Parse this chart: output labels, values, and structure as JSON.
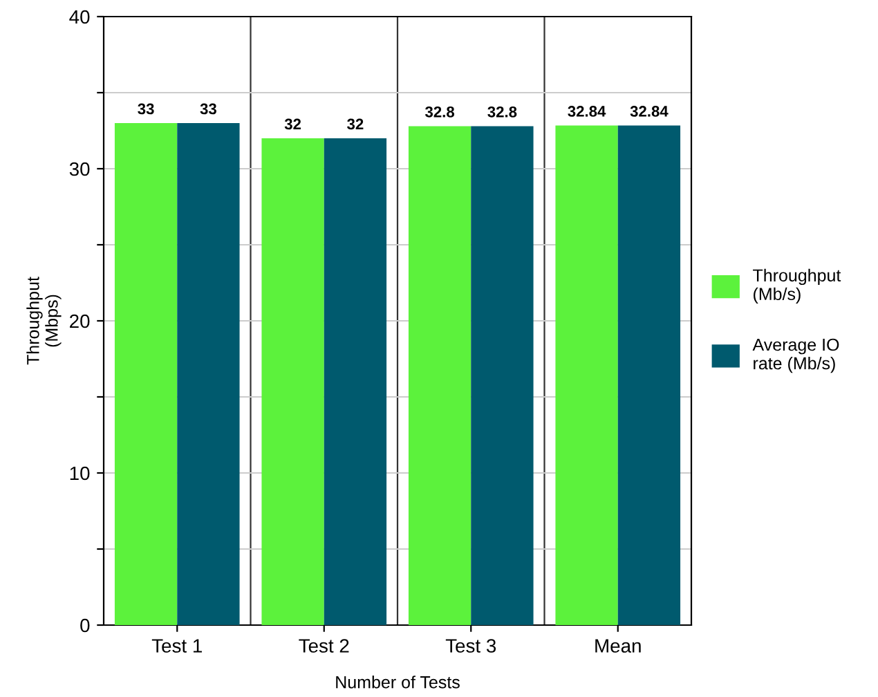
{
  "chart_data": {
    "type": "bar",
    "xlabel": "Number of Tests",
    "ylabel": "Throughput\n(Mbps)",
    "categories": [
      "Test 1",
      "Test 2",
      "Test 3",
      "Mean"
    ],
    "series": [
      {
        "name": "Throughput\n(Mb/s)",
        "color": "#5cf23c",
        "values": [
          33,
          32,
          32.8,
          32.84
        ]
      },
      {
        "name": "Average IO\nrate (Mb/s)",
        "color": "#005a6e",
        "values": [
          33,
          32,
          32.8,
          32.84
        ]
      }
    ],
    "ylim": [
      0,
      40
    ],
    "yticks": [
      0,
      {
        "value": 5,
        "label": null
      },
      10,
      {
        "value": 15,
        "label": null
      },
      20,
      {
        "value": 25,
        "label": null
      },
      30,
      {
        "value": 35,
        "label": null
      },
      40
    ],
    "grid": true,
    "legend": "right",
    "data_labels": true
  }
}
